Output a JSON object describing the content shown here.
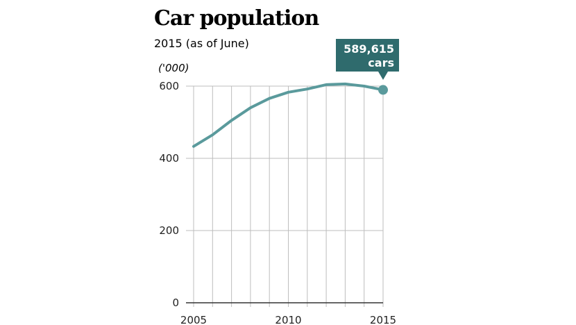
{
  "chart_data": {
    "type": "line",
    "title": "Car population",
    "subtitle": "2015 (as of June)",
    "unit_label": "('000)",
    "x": [
      2005,
      2006,
      2007,
      2008,
      2009,
      2010,
      2011,
      2012,
      2013,
      2014,
      2015
    ],
    "series": [
      {
        "values": [
          433,
          465,
          505,
          540,
          566,
          583,
          592,
          604,
          606,
          600,
          589.615
        ]
      }
    ],
    "xlim": [
      2005,
      2015
    ],
    "ylim": [
      0,
      600
    ],
    "y_ticks": [
      0,
      200,
      400,
      600
    ],
    "x_tick_labels": [
      "2005",
      "2010",
      "2015"
    ],
    "grid": true,
    "callout": {
      "value": "589,615",
      "unit": "cars"
    },
    "colors": {
      "line": "#5a9a9c",
      "callout_bg": "#2f6b6d",
      "grid": "#bdbdbd",
      "axis": "#333333"
    }
  }
}
